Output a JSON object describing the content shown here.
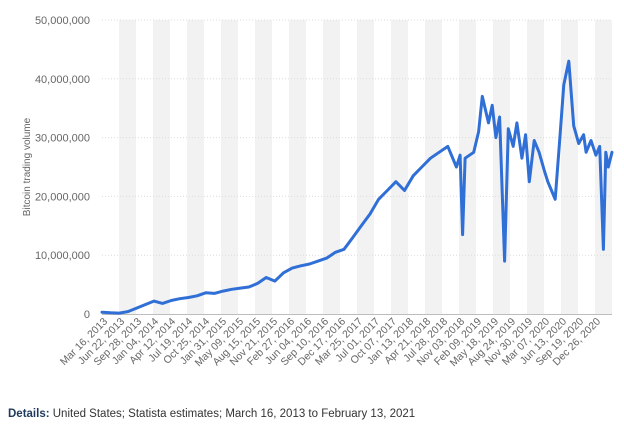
{
  "chart_data": {
    "type": "line",
    "ylabel": "Bitcoin trading volume",
    "ylim": [
      0,
      50000000
    ],
    "yticks": [
      0,
      10000000,
      20000000,
      30000000,
      40000000,
      50000000
    ],
    "ytick_labels": [
      "0",
      "10,000,000",
      "20,000,000",
      "30,000,000",
      "40,000,000",
      "50,000,000"
    ],
    "x_tick_labels": [
      "Mar 16, 2013",
      "Jun 22, 2013",
      "Sep 28, 2013",
      "Jan 04, 2014",
      "Apr 12, 2014",
      "Jul 19, 2014",
      "Oct 25, 2014",
      "Jan 31, 2015",
      "May 09, 2015",
      "Aug 15, 2015",
      "Nov 21, 2015",
      "Feb 27, 2016",
      "Jun 04, 2016",
      "Sep 10, 2016",
      "Dec 17, 2016",
      "Mar 25, 2017",
      "Jul 01, 2017",
      "Oct 07, 2017",
      "Jan 13, 2018",
      "Apr 21, 2018",
      "Jul 28, 2018",
      "Nov 03, 2018",
      "Feb 09, 2019",
      "May 18, 2019",
      "Aug 24, 2019",
      "Nov 30, 2019",
      "Mar 07, 2020",
      "Jun 13, 2020",
      "Sep 19, 2020",
      "Dec 26, 2020"
    ],
    "grid": true,
    "legend": "none",
    "series": [
      {
        "color": "#2f6fd6",
        "x": [
          "Mar 16, 2013",
          "May 04, 2013",
          "Jun 22, 2013",
          "Aug 10, 2013",
          "Sep 28, 2013",
          "Nov 16, 2013",
          "Jan 04, 2014",
          "Feb 22, 2014",
          "Apr 12, 2014",
          "May 31, 2014",
          "Jul 19, 2014",
          "Sep 06, 2014",
          "Oct 25, 2014",
          "Dec 13, 2014",
          "Jan 31, 2015",
          "Mar 21, 2015",
          "May 09, 2015",
          "Jun 27, 2015",
          "Aug 15, 2015",
          "Oct 03, 2015",
          "Nov 21, 2015",
          "Jan 09, 2016",
          "Feb 27, 2016",
          "Apr 16, 2016",
          "Jun 04, 2016",
          "Jul 23, 2016",
          "Sep 10, 2016",
          "Oct 29, 2016",
          "Dec 17, 2016",
          "Feb 04, 2017",
          "Mar 25, 2017",
          "May 13, 2017",
          "Jul 01, 2017",
          "Aug 19, 2017",
          "Oct 07, 2017",
          "Nov 25, 2017",
          "Jan 13, 2018",
          "Mar 03, 2018",
          "Apr 21, 2018",
          "Jun 09, 2018",
          "Jul 28, 2018",
          "Sep 15, 2018",
          "Oct 06, 2018",
          "Oct 20, 2018",
          "Nov 03, 2018",
          "Dec 22, 2018",
          "Jan 19, 2019",
          "Feb 09, 2019",
          "Mar 16, 2019",
          "Apr 06, 2019",
          "Apr 27, 2019",
          "May 18, 2019",
          "Jun 15, 2019",
          "Jul 06, 2019",
          "Aug 03, 2019",
          "Aug 24, 2019",
          "Sep 21, 2019",
          "Oct 12, 2019",
          "Nov 02, 2019",
          "Nov 30, 2019",
          "Dec 28, 2019",
          "Jan 25, 2020",
          "Feb 15, 2020",
          "Mar 07, 2020",
          "Mar 28, 2020",
          "Apr 25, 2020",
          "May 16, 2020",
          "Jun 13, 2020",
          "Jul 11, 2020",
          "Aug 08, 2020",
          "Sep 05, 2020",
          "Sep 19, 2020",
          "Oct 17, 2020",
          "Nov 14, 2020",
          "Dec 05, 2020",
          "Dec 26, 2020",
          "Jan 09, 2021",
          "Jan 23, 2021",
          "Feb 13, 2021"
        ],
        "values": [
          300000,
          200000,
          150000,
          400000,
          1000000,
          1600000,
          2200000,
          1800000,
          2300000,
          2600000,
          2800000,
          3100000,
          3600000,
          3500000,
          3900000,
          4200000,
          4400000,
          4600000,
          5200000,
          6200000,
          5600000,
          7000000,
          7800000,
          8200000,
          8500000,
          9000000,
          9500000,
          10500000,
          11000000,
          13000000,
          15000000,
          17000000,
          19500000,
          21000000,
          22500000,
          21000000,
          23500000,
          25000000,
          26500000,
          27500000,
          28500000,
          25000000,
          27000000,
          13500000,
          26500000,
          27500000,
          31000000,
          37000000,
          32500000,
          35500000,
          30000000,
          33500000,
          9000000,
          31500000,
          28500000,
          32500000,
          26500000,
          30500000,
          22500000,
          29500000,
          27500000,
          24500000,
          22500000,
          21000000,
          19500000,
          30500000,
          39000000,
          43000000,
          32000000,
          29000000,
          30500000,
          27500000,
          29500000,
          27000000,
          28500000,
          11000000,
          27500000,
          25000000,
          27500000
        ]
      }
    ]
  },
  "details": {
    "label": "Details:",
    "text": "United States; Statista estimates; March 16, 2013 to February 13, 2021"
  }
}
